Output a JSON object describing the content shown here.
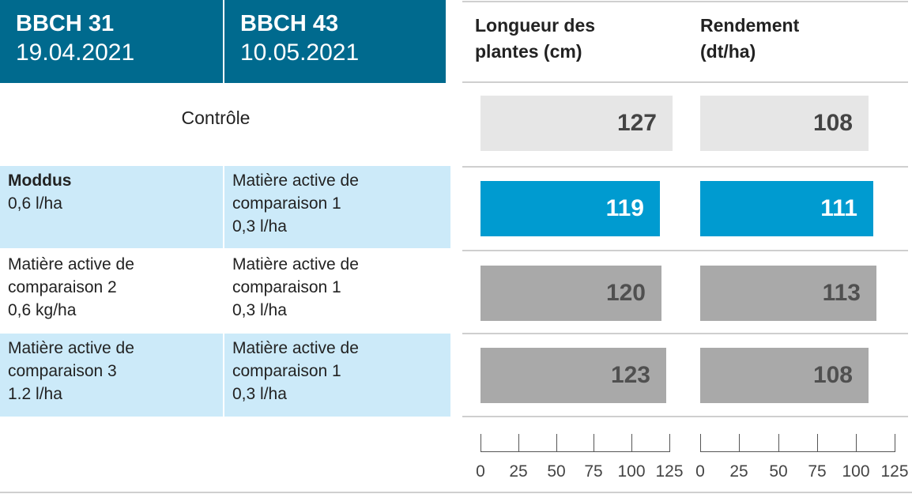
{
  "header": {
    "col1_stage": "BBCH 31",
    "col1_date": "19.04.2021",
    "col2_stage": "BBCH 43",
    "col2_date": "10.05.2021"
  },
  "control_label": "Contrôle",
  "treatments": [
    {
      "app1_line1": "Moddus",
      "app1_line2": "0,6 l/ha",
      "app2_line1": "Matière active de",
      "app2_line2": "comparaison 1",
      "app2_line3": "0,3 l/ha"
    },
    {
      "app1_line1": "Matière active de",
      "app1_line2": "comparaison 2",
      "app1_line3": "0,6 kg/ha",
      "app2_line1": "Matière active de",
      "app2_line2": "comparaison 1",
      "app2_line3": "0,3 l/ha"
    },
    {
      "app1_line1": "Matière active de",
      "app1_line2": "comparaison 3",
      "app1_line3": "1.2 l/ha",
      "app2_line1": "Matière active de",
      "app2_line2": "comparaison 1",
      "app2_line3": "0,3 l/ha"
    }
  ],
  "colors": {
    "header_bg": "#006a8e",
    "highlight_row": "#cceaf9",
    "control_bar": "#e6e6e6",
    "moddus_bar": "#009bd0",
    "comparison_bar": "#a9a9a9"
  },
  "chart_data": [
    {
      "type": "bar",
      "orientation": "horizontal",
      "title_line1": "Longueur des",
      "title_line2": "plantes (cm)",
      "categories": [
        "Contrôle",
        "Moddus",
        "Matière active de comparaison 2",
        "Matière active de comparaison 3"
      ],
      "values": [
        127,
        119,
        120,
        123
      ],
      "xlim": [
        0,
        130
      ],
      "ticks": [
        0,
        25,
        50,
        75,
        100,
        125
      ]
    },
    {
      "type": "bar",
      "orientation": "horizontal",
      "title_line1": "Rendement",
      "title_line2": "(dt/ha)",
      "categories": [
        "Contrôle",
        "Moddus",
        "Matière active de comparaison 2",
        "Matière active de comparaison 3"
      ],
      "values": [
        108,
        111,
        113,
        108
      ],
      "xlim": [
        0,
        125
      ],
      "ticks": [
        0,
        25,
        50,
        75,
        100,
        125
      ]
    }
  ]
}
